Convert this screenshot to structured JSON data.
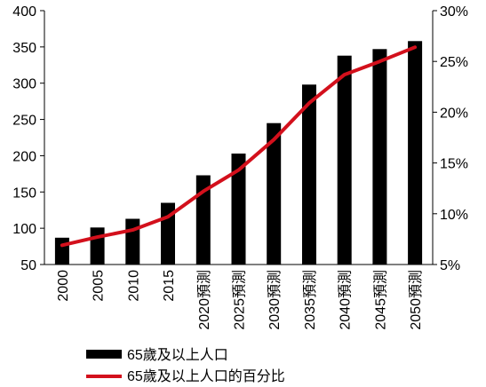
{
  "chart_data": {
    "type": "bar",
    "categories": [
      "2000",
      "2005",
      "2010",
      "2015",
      "2020預測",
      "2025預測",
      "2030預測",
      "2035預測",
      "2040預測",
      "2045預測",
      "2050預測"
    ],
    "series": [
      {
        "name": "65歲及以上人口",
        "type": "bar",
        "axis": "left",
        "color": "#000000",
        "values": [
          87,
          101,
          113,
          135,
          173,
          203,
          245,
          298,
          338,
          347,
          358
        ]
      },
      {
        "name": "65歲及以上人口的百分比",
        "type": "line",
        "axis": "right",
        "color": "#d3101c",
        "values": [
          6.9,
          7.7,
          8.4,
          9.7,
          12.2,
          14.3,
          17.3,
          20.9,
          23.7,
          25.0,
          26.4
        ]
      }
    ],
    "y_left": {
      "min": 50,
      "max": 400,
      "ticks": [
        50,
        100,
        150,
        200,
        250,
        300,
        350,
        400
      ]
    },
    "y_right": {
      "min": 5,
      "max": 30,
      "ticks": [
        "5%",
        "10%",
        "15%",
        "20%",
        "25%",
        "30%"
      ],
      "tick_values": [
        5,
        10,
        15,
        20,
        25,
        30
      ]
    },
    "grid": false,
    "legend": "bottom-center"
  }
}
